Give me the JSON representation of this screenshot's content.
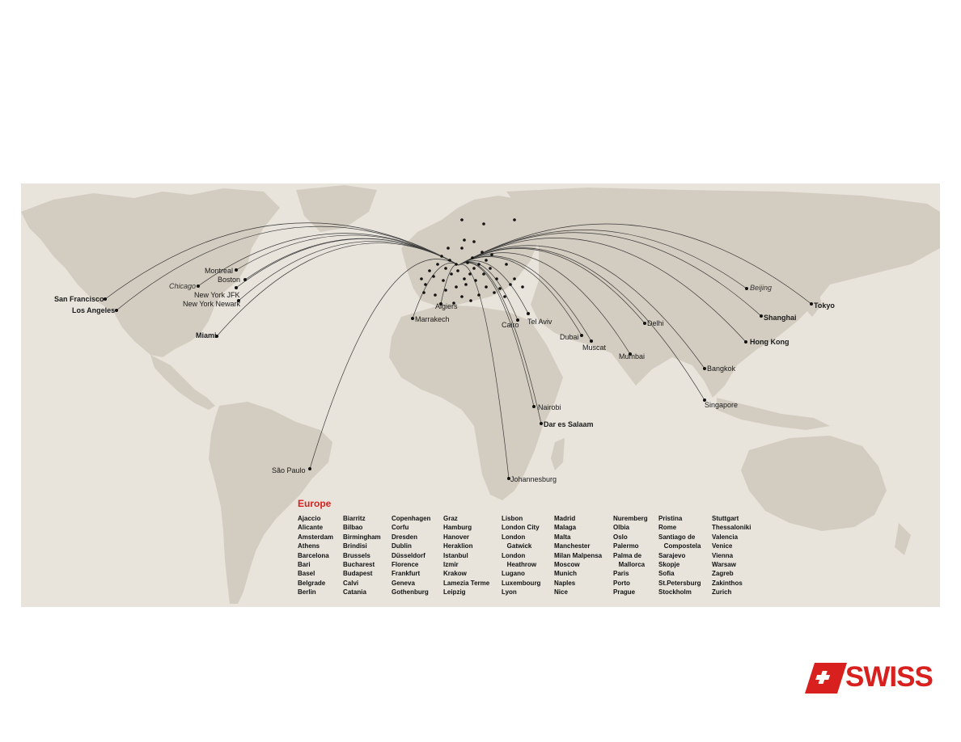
{
  "colors": {
    "land": "#d3ccc0",
    "ocean": "#e8e4dc",
    "route": "#3a3a3a",
    "brand": "#d8201e"
  },
  "cities": [
    {
      "name": "San Francisco",
      "style": "bold"
    },
    {
      "name": "Los Angeles",
      "style": "bold"
    },
    {
      "name": "Chicago",
      "style": "italic"
    },
    {
      "name": "Montreal",
      "style": "normal"
    },
    {
      "name": "Boston",
      "style": "normal"
    },
    {
      "name": "New York JFK",
      "style": "normal"
    },
    {
      "name": "New York Newark",
      "style": "normal"
    },
    {
      "name": "Miami",
      "style": "bold"
    },
    {
      "name": "São Paulo",
      "style": "normal"
    },
    {
      "name": "Marrakech",
      "style": "normal"
    },
    {
      "name": "Algiers",
      "style": "normal"
    },
    {
      "name": "Cairo",
      "style": "normal"
    },
    {
      "name": "Tel Aviv",
      "style": "normal"
    },
    {
      "name": "Dubai",
      "style": "normal"
    },
    {
      "name": "Muscat",
      "style": "normal"
    },
    {
      "name": "Delhi",
      "style": "normal"
    },
    {
      "name": "Mumbai",
      "style": "normal"
    },
    {
      "name": "Nairobi",
      "style": "normal"
    },
    {
      "name": "Dar es Salaam",
      "style": "bold"
    },
    {
      "name": "Johannesburg",
      "style": "normal"
    },
    {
      "name": "Beijing",
      "style": "italic"
    },
    {
      "name": "Shanghai",
      "style": "bold"
    },
    {
      "name": "Tokyo",
      "style": "bold"
    },
    {
      "name": "Hong Kong",
      "style": "bold"
    },
    {
      "name": "Bangkok",
      "style": "normal"
    },
    {
      "name": "Singapore",
      "style": "normal"
    }
  ],
  "europe": {
    "title": "Europe",
    "columns": [
      [
        "Ajaccio",
        "Alicante",
        "Amsterdam",
        "Athens",
        "Barcelona",
        "Bari",
        "Basel",
        "Belgrade",
        "Berlin"
      ],
      [
        "Biarritz",
        "Bilbao",
        "Birmingham",
        "Brindisi",
        "Brussels",
        "Bucharest",
        "Budapest",
        "Calvi",
        "Catania"
      ],
      [
        "Copenhagen",
        "Corfu",
        "Dresden",
        "Dublin",
        "Düsseldorf",
        "Florence",
        "Frankfurt",
        "Geneva",
        "Gothenburg"
      ],
      [
        "Graz",
        "Hamburg",
        "Hanover",
        "Heraklion",
        "Istanbul",
        "Izmir",
        "Krakow",
        "Lamezia Terme",
        "Leipzig"
      ],
      [
        "Lisbon",
        "London City",
        "London",
        "   Gatwick",
        "London",
        "   Heathrow",
        "Lugano",
        "Luxembourg",
        "Lyon"
      ],
      [
        "Madrid",
        "Malaga",
        "Malta",
        "Manchester",
        "Milan Malpensa",
        "Moscow",
        "Munich",
        "Naples",
        "Nice"
      ],
      [
        "Nuremberg",
        "Olbia",
        "Oslo",
        "Palermo",
        "Palma de",
        "   Mallorca",
        "Paris",
        "Porto",
        "Prague"
      ],
      [
        "Pristina",
        "Rome",
        "Santiago de",
        "   Compostela",
        "Sarajevo",
        "Skopje",
        "Sofia",
        "St.Petersburg",
        "Stockholm"
      ],
      [
        "Stuttgart",
        "Thessaloniki",
        "Valencia",
        "Venice",
        "Vienna",
        "Warsaw",
        "Zagreb",
        "Zakinthos",
        "Zurich"
      ]
    ]
  },
  "logo": {
    "text": "SWISS"
  }
}
